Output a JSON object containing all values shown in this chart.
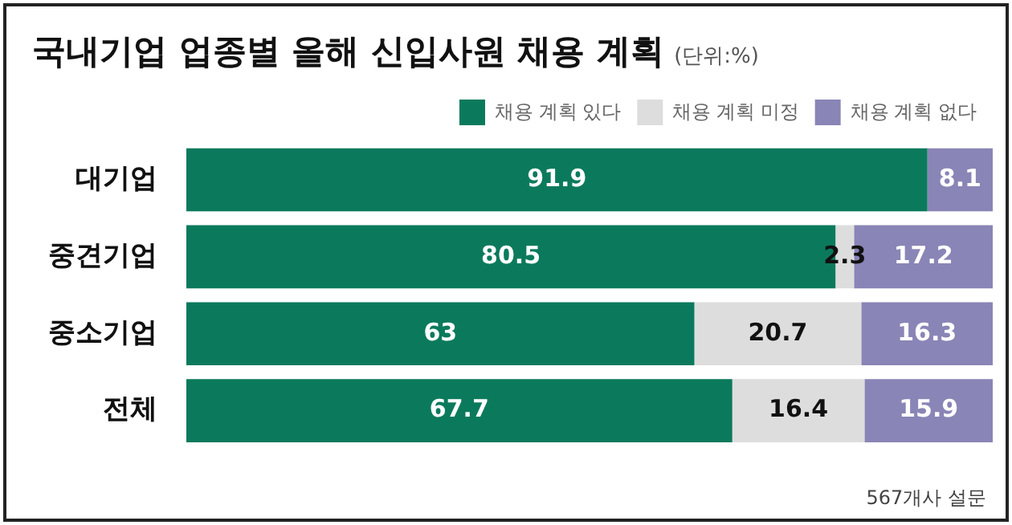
{
  "chart_data": {
    "type": "bar",
    "orientation": "horizontal",
    "stacked": true,
    "title": "국내기업 업종별 올해 신입사원 채용 계획",
    "subtitle": "(단위:%)",
    "categories": [
      "대기업",
      "중견기업",
      "중소기업",
      "전체"
    ],
    "series": [
      {
        "name": "채용 계획 있다",
        "color": "#0b7a5c",
        "values": [
          91.9,
          80.5,
          63,
          67.7
        ],
        "value_labels": [
          "91.9",
          "80.5",
          "63",
          "67.7"
        ]
      },
      {
        "name": "채용 계획 미정",
        "color": "#dddddd",
        "values": [
          0,
          2.3,
          20.7,
          16.4
        ],
        "value_labels": [
          null,
          "2.3",
          "20.7",
          "16.4"
        ]
      },
      {
        "name": "채용 계획 없다",
        "color": "#8985b6",
        "values": [
          8.1,
          17.2,
          16.3,
          15.9
        ],
        "value_labels": [
          "8.1",
          "17.2",
          "16.3",
          "15.9"
        ]
      }
    ],
    "xlim": [
      0,
      100
    ],
    "tick_labels": "y",
    "legend": "top right",
    "annotations": [
      "567개사 설문"
    ]
  }
}
